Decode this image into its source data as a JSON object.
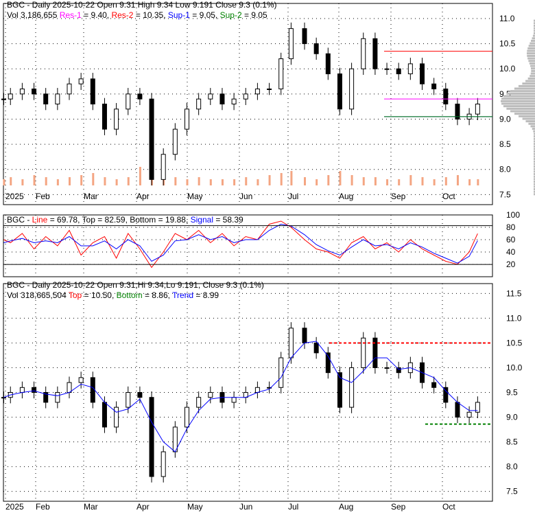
{
  "colors": {
    "res1": "#ff00ff",
    "res2": "#ff0000",
    "sup1": "#0000ff",
    "sup2": "#008000",
    "up": "#008000",
    "down": "#ff0000",
    "volume": "#f4a582"
  },
  "panel1_header": {
    "line1": "BGC - Daily 2025-10-22 Open 9.31  High 9.34  Low 9.191  Close 9.3 (0.1%)",
    "vol": "Vol 3,186,655",
    "res1_label": "Res-1",
    "res1_val": " = 9.40, ",
    "res2_label": "Res-2",
    "res2_val": " = 10.35, ",
    "sup1_label": "Sup-1",
    "sup1_val": " = 9.05, ",
    "sup2_label": "Sup-2",
    "sup2_val": " = 9.05"
  },
  "panel2_header": {
    "prefix": "BGC - ",
    "line_label": "Line",
    "line_val": " = 69.78, Top = 82.59, Bottom = 19.88, ",
    "signal_label": "Signal",
    "signal_val": " = 58.39"
  },
  "panel3_header": {
    "line1": "BGC - Daily 2025-10-22 Open 9.31,Hi 9.34,Lo 9.191, Close 9.3 (0.1%)",
    "vol": "Vol 318,665,504 ",
    "top_label": "Top",
    "top_val": " = 10.50, ",
    "bottom_label": "Bottom",
    "bottom_val": " = 8.86, ",
    "trend_label": "Trend",
    "trend_val": " = 8.99"
  },
  "chart_data": [
    {
      "type": "candlestick",
      "title": "BGC - Daily 2025-10-22",
      "x_tick_labels": [
        "2025",
        "Feb",
        "Mar",
        "Apr",
        "May",
        "Jun",
        "Jul",
        "Aug",
        "Sep",
        "Oct"
      ],
      "y_tick_labels": [
        "7.5",
        "8.0",
        "8.5",
        "9.0",
        "9.5",
        "10.0",
        "10.5",
        "11.0"
      ],
      "ylim": [
        7.3,
        11.3
      ],
      "dates": [
        "2025-01-13",
        "2025-01-17",
        "2025-01-24",
        "2025-01-31",
        "2025-02-07",
        "2025-02-14",
        "2025-02-21",
        "2025-02-28",
        "2025-03-07",
        "2025-03-14",
        "2025-03-21",
        "2025-03-28",
        "2025-04-04",
        "2025-04-11",
        "2025-04-18",
        "2025-04-25",
        "2025-05-02",
        "2025-05-09",
        "2025-05-16",
        "2025-05-23",
        "2025-05-30",
        "2025-06-06",
        "2025-06-13",
        "2025-06-20",
        "2025-06-27",
        "2025-07-03",
        "2025-07-11",
        "2025-07-18",
        "2025-07-25",
        "2025-08-01",
        "2025-08-08",
        "2025-08-15",
        "2025-08-22",
        "2025-08-29",
        "2025-09-05",
        "2025-09-12",
        "2025-09-19",
        "2025-09-26",
        "2025-10-03",
        "2025-10-10",
        "2025-10-17",
        "2025-10-22"
      ],
      "close": [
        9.4,
        9.5,
        9.6,
        9.5,
        9.3,
        9.5,
        9.7,
        9.8,
        9.3,
        8.8,
        9.2,
        9.5,
        9.4,
        7.8,
        8.3,
        8.8,
        9.2,
        9.4,
        9.5,
        9.3,
        9.4,
        9.5,
        9.6,
        9.6,
        10.2,
        10.8,
        10.5,
        10.3,
        9.9,
        9.2,
        10.0,
        10.6,
        10.0,
        10.0,
        9.9,
        10.1,
        9.7,
        9.6,
        9.3,
        9.0,
        9.1,
        9.3
      ],
      "volume_relative": [
        0.3,
        0.4,
        0.3,
        0.5,
        0.4,
        0.3,
        0.4,
        0.5,
        0.6,
        0.4,
        0.3,
        0.4,
        0.9,
        1.0,
        0.5,
        0.4,
        0.3,
        0.4,
        0.3,
        0.3,
        0.3,
        0.4,
        0.3,
        0.5,
        0.6,
        0.7,
        0.4,
        0.3,
        0.5,
        0.7,
        0.5,
        0.4,
        0.4,
        0.3,
        0.3,
        0.5,
        0.4,
        0.3,
        0.4,
        0.5,
        0.3,
        0.3
      ],
      "res1": 9.4,
      "res2": 10.35,
      "sup1": 9.05,
      "sup2": 9.05
    },
    {
      "type": "line",
      "ylim": [
        0,
        100
      ],
      "y_tick_labels": [
        "20",
        "40",
        "60",
        "80",
        "100"
      ],
      "series": [
        {
          "name": "Line",
          "values": [
            60,
            55,
            70,
            45,
            65,
            50,
            75,
            35,
            55,
            65,
            30,
            70,
            45,
            15,
            40,
            70,
            60,
            75,
            55,
            70,
            50,
            65,
            60,
            85,
            90,
            80,
            60,
            45,
            40,
            30,
            55,
            65,
            45,
            55,
            40,
            60,
            45,
            35,
            25,
            20,
            40,
            69.78
          ]
        },
        {
          "name": "Signal",
          "values": [
            55,
            58,
            62,
            55,
            58,
            55,
            65,
            50,
            50,
            58,
            45,
            60,
            50,
            25,
            35,
            58,
            60,
            68,
            60,
            65,
            55,
            60,
            60,
            75,
            85,
            82,
            68,
            52,
            42,
            35,
            48,
            60,
            50,
            52,
            45,
            55,
            48,
            38,
            30,
            22,
            33,
            58.39
          ]
        }
      ],
      "top": 82.59,
      "bottom": 19.88
    },
    {
      "type": "candlestick",
      "ylim": [
        7.3,
        11.7
      ],
      "y_tick_labels": [
        "7.5",
        "8.0",
        "8.5",
        "9.0",
        "9.5",
        "10.0",
        "10.5",
        "11.0",
        "11.5"
      ],
      "top": 10.5,
      "bottom": 8.86,
      "trend": 8.99
    }
  ]
}
